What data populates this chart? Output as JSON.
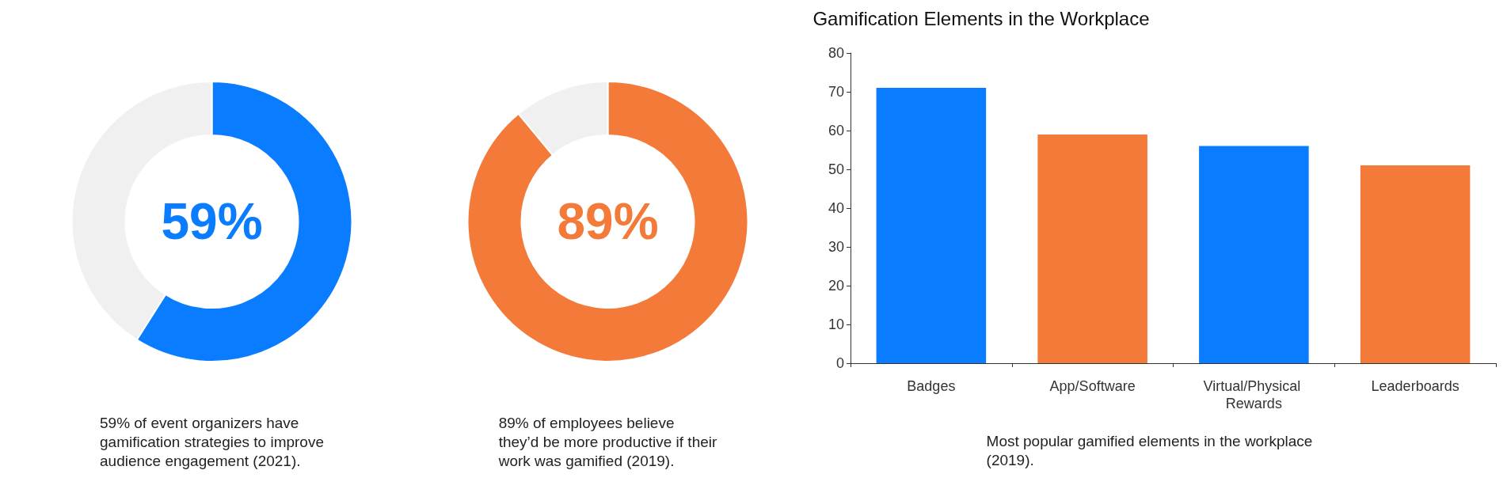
{
  "chart_data": [
    {
      "type": "donut",
      "categories": [
        null,
        null
      ],
      "values": [
        59,
        41
      ],
      "colors": [
        "#0a7cff",
        "#f0f0f0"
      ],
      "value_labels": [
        "59%",
        null
      ],
      "annotations": [
        "59% of event organizers have\ngamification strategies to improve\naudience engagement (2021)."
      ]
    },
    {
      "type": "donut",
      "categories": [
        null,
        null
      ],
      "values": [
        89,
        11
      ],
      "colors": [
        "#f47a3a",
        "#f0f0f0"
      ],
      "value_labels": [
        "89%",
        null
      ],
      "annotations": [
        "89% of employees believe\nthey’d be more productive if their\nwork was gamified (2019)."
      ]
    },
    {
      "type": "bar",
      "title": "Gamification Elements in the Workplace",
      "categories": [
        "Badges",
        "App/Software",
        "Virtual/Physical Rewards",
        "Leaderboards"
      ],
      "values": [
        71,
        59,
        56,
        51
      ],
      "colors": [
        "#0a7cff",
        "#f47a3a",
        "#0a7cff",
        "#f47a3a"
      ],
      "ylim": [
        0,
        80
      ],
      "yticks": [
        0,
        10,
        20,
        30,
        40,
        50,
        60,
        70,
        80
      ],
      "annotations": [
        "Most popular gamified elements in the workplace\n(2019)."
      ]
    }
  ]
}
